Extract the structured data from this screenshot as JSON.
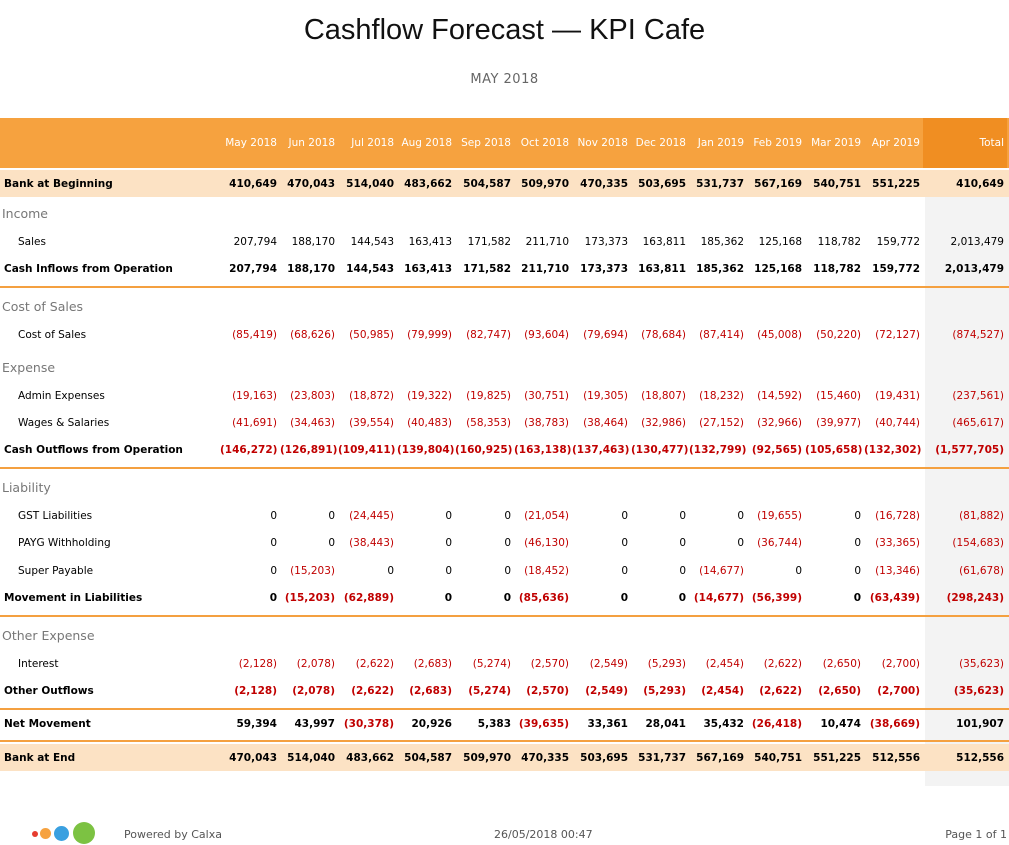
{
  "title": "Cashflow Forecast — KPI Cafe",
  "subtitle": "MAY 2018",
  "columns": [
    "May 2018",
    "Jun 2018",
    "Jul 2018",
    "Aug 2018",
    "Sep 2018",
    "Oct 2018",
    "Nov 2018",
    "Dec 2018",
    "Jan 2019",
    "Feb 2019",
    "Mar 2019",
    "Apr 2019",
    "Total"
  ],
  "rows": {
    "bank_beginning": {
      "label": "Bank at Beginning",
      "values": [
        "410,649",
        "470,043",
        "514,040",
        "483,662",
        "504,587",
        "509,970",
        "470,335",
        "503,695",
        "531,737",
        "567,169",
        "540,751",
        "551,225",
        "410,649"
      ]
    },
    "income_heading": "Income",
    "sales": {
      "label": "Sales",
      "values": [
        "207,794",
        "188,170",
        "144,543",
        "163,413",
        "171,582",
        "211,710",
        "173,373",
        "163,811",
        "185,362",
        "125,168",
        "118,782",
        "159,772",
        "2,013,479"
      ]
    },
    "cash_inflows": {
      "label": "Cash Inflows from Operation",
      "values": [
        "207,794",
        "188,170",
        "144,543",
        "163,413",
        "171,582",
        "211,710",
        "173,373",
        "163,811",
        "185,362",
        "125,168",
        "118,782",
        "159,772",
        "2,013,479"
      ]
    },
    "cos_heading": "Cost of Sales",
    "cost_of_sales": {
      "label": "Cost of Sales",
      "values": [
        "(85,419)",
        "(68,626)",
        "(50,985)",
        "(79,999)",
        "(82,747)",
        "(93,604)",
        "(79,694)",
        "(78,684)",
        "(87,414)",
        "(45,008)",
        "(50,220)",
        "(72,127)",
        "(874,527)"
      ]
    },
    "expense_heading": "Expense",
    "admin": {
      "label": "Admin Expenses",
      "values": [
        "(19,163)",
        "(23,803)",
        "(18,872)",
        "(19,322)",
        "(19,825)",
        "(30,751)",
        "(19,305)",
        "(18,807)",
        "(18,232)",
        "(14,592)",
        "(15,460)",
        "(19,431)",
        "(237,561)"
      ]
    },
    "wages": {
      "label": "Wages & Salaries",
      "values": [
        "(41,691)",
        "(34,463)",
        "(39,554)",
        "(40,483)",
        "(58,353)",
        "(38,783)",
        "(38,464)",
        "(32,986)",
        "(27,152)",
        "(32,966)",
        "(39,977)",
        "(40,744)",
        "(465,617)"
      ]
    },
    "cash_outflows": {
      "label": "Cash Outflows from Operation",
      "values": [
        "(146,272)",
        "(126,891)",
        "(109,411)",
        "(139,804)",
        "(160,925)",
        "(163,138)",
        "(137,463)",
        "(130,477)",
        "(132,799)",
        "(92,565)",
        "(105,658)",
        "(132,302)",
        "(1,577,705)"
      ]
    },
    "liability_heading": "Liability",
    "gst": {
      "label": "GST Liabilities",
      "values": [
        "0",
        "0",
        "(24,445)",
        "0",
        "0",
        "(21,054)",
        "0",
        "0",
        "0",
        "(19,655)",
        "0",
        "(16,728)",
        "(81,882)"
      ]
    },
    "payg": {
      "label": "PAYG Withholding",
      "values": [
        "0",
        "0",
        "(38,443)",
        "0",
        "0",
        "(46,130)",
        "0",
        "0",
        "0",
        "(36,744)",
        "0",
        "(33,365)",
        "(154,683)"
      ]
    },
    "super": {
      "label": "Super Payable",
      "values": [
        "0",
        "(15,203)",
        "0",
        "0",
        "0",
        "(18,452)",
        "0",
        "0",
        "(14,677)",
        "0",
        "0",
        "(13,346)",
        "(61,678)"
      ]
    },
    "movement_liabilities": {
      "label": "Movement in Liabilities",
      "values": [
        "0",
        "(15,203)",
        "(62,889)",
        "0",
        "0",
        "(85,636)",
        "0",
        "0",
        "(14,677)",
        "(56,399)",
        "0",
        "(63,439)",
        "(298,243)"
      ]
    },
    "other_expense_heading": "Other Expense",
    "interest": {
      "label": "Interest",
      "values": [
        "(2,128)",
        "(2,078)",
        "(2,622)",
        "(2,683)",
        "(5,274)",
        "(2,570)",
        "(2,549)",
        "(5,293)",
        "(2,454)",
        "(2,622)",
        "(2,650)",
        "(2,700)",
        "(35,623)"
      ]
    },
    "other_outflows": {
      "label": "Other Outflows",
      "values": [
        "(2,128)",
        "(2,078)",
        "(2,622)",
        "(2,683)",
        "(5,274)",
        "(2,570)",
        "(2,549)",
        "(5,293)",
        "(2,454)",
        "(2,622)",
        "(2,650)",
        "(2,700)",
        "(35,623)"
      ]
    },
    "net_movement": {
      "label": "Net Movement",
      "values": [
        "59,394",
        "43,997",
        "(30,378)",
        "20,926",
        "5,383",
        "(39,635)",
        "33,361",
        "28,041",
        "35,432",
        "(26,418)",
        "10,474",
        "(38,669)",
        "101,907"
      ]
    },
    "bank_end": {
      "label": "Bank at End",
      "values": [
        "470,043",
        "514,040",
        "483,662",
        "504,587",
        "509,970",
        "470,335",
        "503,695",
        "531,737",
        "567,169",
        "540,751",
        "551,225",
        "512,556",
        "512,556"
      ]
    }
  },
  "footer": {
    "powered_by": "Powered by Calxa",
    "timestamp": "26/05/2018 00:47",
    "page": "Page 1 of 1"
  },
  "colors": {
    "header": "#f6a23f",
    "header_total": "#f08e22",
    "band": "#fce2c4",
    "negative": "#c00000",
    "logo_dots": [
      "#e63c2f",
      "#f6a23f",
      "#3aa0e0",
      "#7cc242"
    ]
  }
}
